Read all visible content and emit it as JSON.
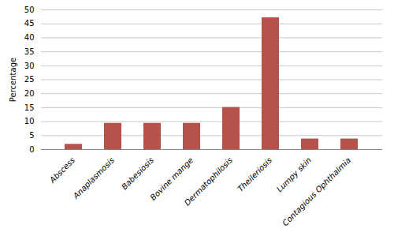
{
  "chart_data": {
    "type": "bar",
    "categories": [
      "Abscess",
      "Anaplasmosis",
      "Babesiosis",
      "Bovine mange",
      "Dermatophilosis",
      "Theileriosis",
      "Lumpy skin",
      "Contagious Ophthalmia"
    ],
    "values": [
      1.9,
      9.4,
      9.4,
      9.4,
      15.1,
      47.2,
      3.8,
      3.8
    ],
    "color": "#b5534a",
    "ylabel": "Percentage",
    "ylim": [
      0,
      50
    ],
    "yticks": [
      0,
      5,
      10,
      15,
      20,
      25,
      30,
      35,
      40,
      45,
      50
    ],
    "grid": true
  }
}
